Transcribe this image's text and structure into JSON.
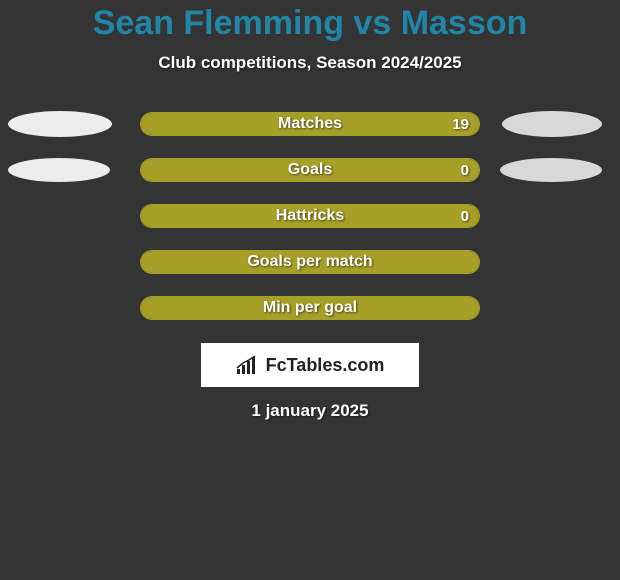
{
  "colors": {
    "background": "#343434",
    "title": "#2185a8",
    "subtitle": "#ffffff",
    "bar_fill": "#a7a028",
    "bar_border": "#a7a028",
    "bar_text": "#ffffff",
    "ellipse_left": "#ececec",
    "ellipse_right": "#d8d8d8",
    "logo_bg": "#ffffff",
    "logo_text": "#222222",
    "date_text": "#ffffff"
  },
  "title": "Sean Flemming vs Masson",
  "subtitle": "Club competitions, Season 2024/2025",
  "stats": [
    {
      "label": "Matches",
      "right_value": "19",
      "fill_pct": 100,
      "left_ellipse": {
        "w": 104,
        "h": 26
      },
      "right_ellipse": {
        "w": 100,
        "h": 26
      }
    },
    {
      "label": "Goals",
      "right_value": "0",
      "fill_pct": 100,
      "left_ellipse": {
        "w": 102,
        "h": 24
      },
      "right_ellipse": {
        "w": 102,
        "h": 24
      }
    },
    {
      "label": "Hattricks",
      "right_value": "0",
      "fill_pct": 100,
      "left_ellipse": null,
      "right_ellipse": null
    },
    {
      "label": "Goals per match",
      "right_value": "",
      "fill_pct": 100,
      "left_ellipse": null,
      "right_ellipse": null
    },
    {
      "label": "Min per goal",
      "right_value": "",
      "fill_pct": 100,
      "left_ellipse": null,
      "right_ellipse": null
    }
  ],
  "logo_text": "FcTables.com",
  "date": "1 january 2025"
}
